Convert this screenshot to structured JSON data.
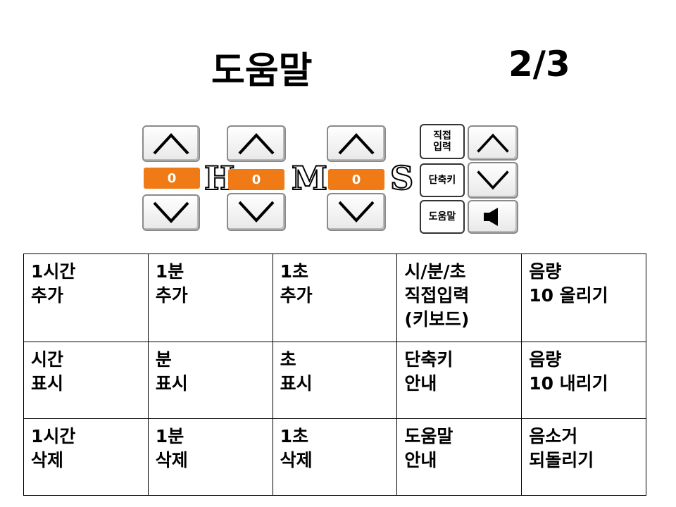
{
  "page": {
    "title": "도움말",
    "page_number": "2/3"
  },
  "widget": {
    "hours_value": "0",
    "minutes_value": "0",
    "seconds_value": "0",
    "hour_unit": "H",
    "minute_unit": "M",
    "second_unit": "S",
    "direct_input_label": "직접\n입력",
    "shortcut_label": "단축키",
    "help_label": "도움말",
    "icons": {
      "up": "chevron-up-icon",
      "down": "chevron-down-icon",
      "speaker": "speaker-icon"
    },
    "accent_color": "#f07a16"
  },
  "help_table": {
    "rows": [
      [
        "1시간\n추가",
        "1분\n추가",
        "1초\n추가",
        "시/분/초\n직접입력\n(키보드)",
        "음량\n10 올리기"
      ],
      [
        "시간\n표시",
        "분\n표시",
        "초\n표시",
        "단축키\n안내",
        "음량\n10 내리기"
      ],
      [
        "1시간\n삭제",
        "1분\n삭제",
        "1초\n삭제",
        "도움말\n안내",
        "음소거\n되돌리기"
      ]
    ]
  }
}
